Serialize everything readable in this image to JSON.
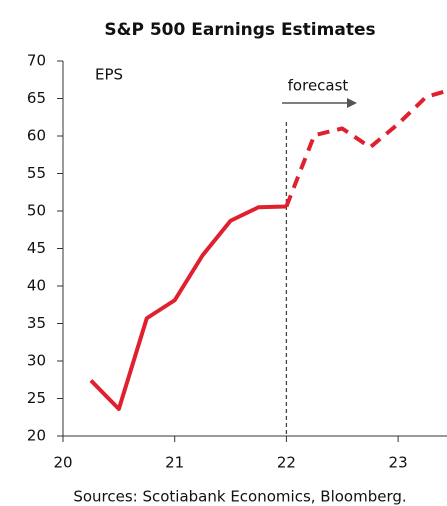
{
  "chart_data": {
    "type": "line",
    "title": "S&P 500 Earnings Estimates",
    "y_label": "EPS",
    "annotation": "forecast",
    "forecast_start": 22,
    "source": "Sources: Scotiabank Economics, Bloomberg.",
    "x": [
      20.25,
      20.5,
      20.75,
      21.0,
      21.25,
      21.5,
      21.75,
      22.0,
      22.25,
      22.5,
      22.75,
      23.0,
      23.25,
      23.5
    ],
    "series": [
      {
        "color": "#e0202e",
        "dashed": false,
        "values": [
          27.4,
          23.6,
          35.7,
          38.1,
          44.1,
          48.7,
          50.5,
          50.6,
          null,
          null,
          null,
          null,
          null,
          null
        ]
      },
      {
        "color": "#e0202e",
        "dashed": true,
        "values": [
          null,
          null,
          null,
          null,
          null,
          null,
          null,
          50.6,
          60.1,
          61.0,
          58.5,
          61.6,
          65.2,
          66.3
        ]
      }
    ],
    "xlim": [
      20,
      23.45
    ],
    "xticks": [
      20,
      21,
      22,
      23
    ],
    "ylim": [
      20,
      70
    ],
    "yticks": [
      20,
      25,
      30,
      35,
      40,
      45,
      50,
      55,
      60,
      65,
      70
    ]
  }
}
